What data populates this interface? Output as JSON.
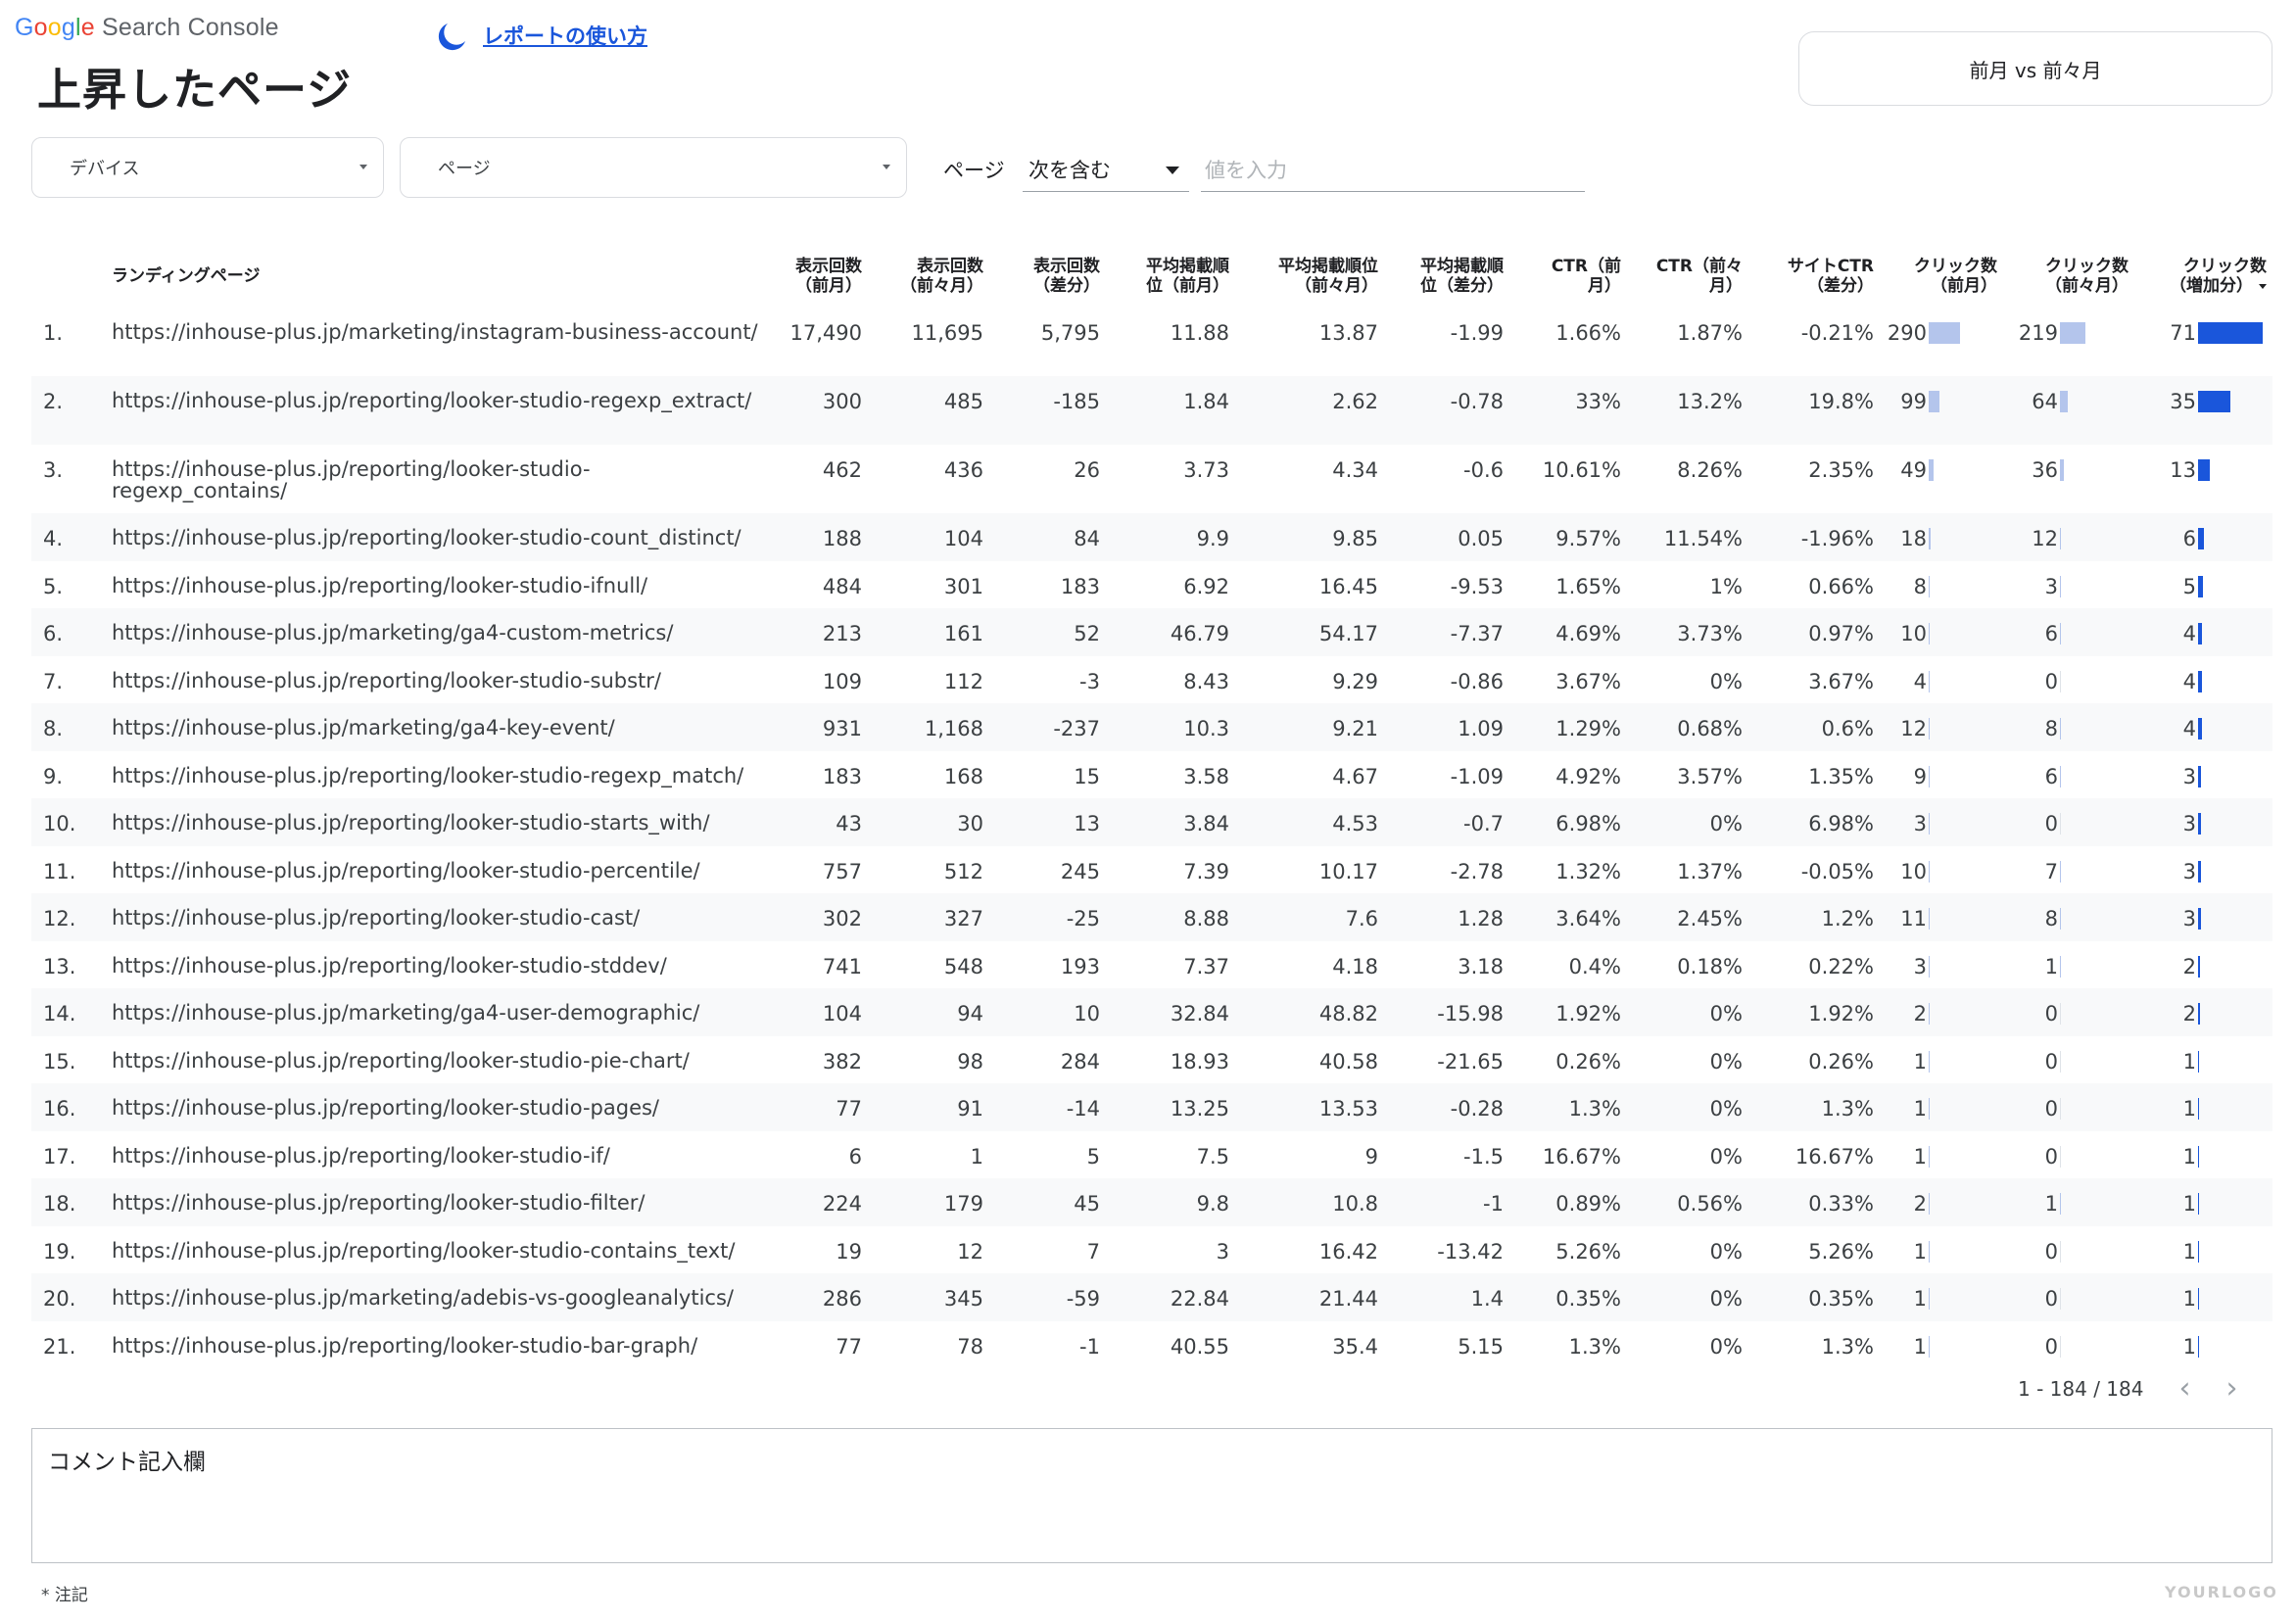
{
  "app": {
    "brand": "Search Console",
    "google": [
      "G",
      "o",
      "o",
      "g",
      "l",
      "e"
    ]
  },
  "page_title": "上昇したページ",
  "help_link": "レポートの使い方",
  "compare_button": "前月 vs 前々月",
  "filters": {
    "device": "デバイス",
    "page": "ページ",
    "condition_label": "ページ",
    "condition_value": "次を含む",
    "value_placeholder": "値を入力"
  },
  "table": {
    "headers": {
      "url": "ランディングページ",
      "imp_prev": [
        "表示回数",
        "（前月）"
      ],
      "imp_prev2": [
        "表示回数",
        "（前々月）"
      ],
      "imp_diff": [
        "表示回数",
        "（差分）"
      ],
      "pos_prev": [
        "平均掲載順",
        "位（前月）"
      ],
      "pos_prev2": [
        "平均掲載順位",
        "（前々月）"
      ],
      "pos_diff": [
        "平均掲載順",
        "位（差分）"
      ],
      "ctr_prev": [
        "CTR（前",
        "月）"
      ],
      "ctr_prev2": [
        "CTR（前々",
        "月）"
      ],
      "ctr_diff": [
        "サイトCTR",
        "（差分）"
      ],
      "clk_prev": [
        "クリック数",
        "（前月）"
      ],
      "clk_prev2": [
        "クリック数",
        "（前々月）"
      ],
      "clk_inc": [
        "クリック数",
        "（増加分）"
      ]
    },
    "rows": [
      {
        "idx": "1.",
        "url": "https://inhouse-plus.jp/marketing/instagram-business-account/",
        "imp_prev": "17,490",
        "imp_prev2": "11,695",
        "imp_diff": "5,795",
        "pos_prev": "11.88",
        "pos_prev2": "13.87",
        "pos_diff": "-1.99",
        "ctr_prev": "1.66%",
        "ctr_prev2": "1.87%",
        "ctr_diff": "-0.21%",
        "clk_prev": 290,
        "clk_prev2": 219,
        "clk_inc": 71
      },
      {
        "idx": "2.",
        "url": "https://inhouse-plus.jp/reporting/looker-studio-regexp_extract/",
        "imp_prev": "300",
        "imp_prev2": "485",
        "imp_diff": "-185",
        "pos_prev": "1.84",
        "pos_prev2": "2.62",
        "pos_diff": "-0.78",
        "ctr_prev": "33%",
        "ctr_prev2": "13.2%",
        "ctr_diff": "19.8%",
        "clk_prev": 99,
        "clk_prev2": 64,
        "clk_inc": 35
      },
      {
        "idx": "3.",
        "url": "https://inhouse-plus.jp/reporting/looker-studio-regexp_contains/",
        "imp_prev": "462",
        "imp_prev2": "436",
        "imp_diff": "26",
        "pos_prev": "3.73",
        "pos_prev2": "4.34",
        "pos_diff": "-0.6",
        "ctr_prev": "10.61%",
        "ctr_prev2": "8.26%",
        "ctr_diff": "2.35%",
        "clk_prev": 49,
        "clk_prev2": 36,
        "clk_inc": 13
      },
      {
        "idx": "4.",
        "url": "https://inhouse-plus.jp/reporting/looker-studio-count_distinct/",
        "imp_prev": "188",
        "imp_prev2": "104",
        "imp_diff": "84",
        "pos_prev": "9.9",
        "pos_prev2": "9.85",
        "pos_diff": "0.05",
        "ctr_prev": "9.57%",
        "ctr_prev2": "11.54%",
        "ctr_diff": "-1.96%",
        "clk_prev": 18,
        "clk_prev2": 12,
        "clk_inc": 6
      },
      {
        "idx": "5.",
        "url": "https://inhouse-plus.jp/reporting/looker-studio-ifnull/",
        "imp_prev": "484",
        "imp_prev2": "301",
        "imp_diff": "183",
        "pos_prev": "6.92",
        "pos_prev2": "16.45",
        "pos_diff": "-9.53",
        "ctr_prev": "1.65%",
        "ctr_prev2": "1%",
        "ctr_diff": "0.66%",
        "clk_prev": 8,
        "clk_prev2": 3,
        "clk_inc": 5
      },
      {
        "idx": "6.",
        "url": "https://inhouse-plus.jp/marketing/ga4-custom-metrics/",
        "imp_prev": "213",
        "imp_prev2": "161",
        "imp_diff": "52",
        "pos_prev": "46.79",
        "pos_prev2": "54.17",
        "pos_diff": "-7.37",
        "ctr_prev": "4.69%",
        "ctr_prev2": "3.73%",
        "ctr_diff": "0.97%",
        "clk_prev": 10,
        "clk_prev2": 6,
        "clk_inc": 4
      },
      {
        "idx": "7.",
        "url": "https://inhouse-plus.jp/reporting/looker-studio-substr/",
        "imp_prev": "109",
        "imp_prev2": "112",
        "imp_diff": "-3",
        "pos_prev": "8.43",
        "pos_prev2": "9.29",
        "pos_diff": "-0.86",
        "ctr_prev": "3.67%",
        "ctr_prev2": "0%",
        "ctr_diff": "3.67%",
        "clk_prev": 4,
        "clk_prev2": 0,
        "clk_inc": 4
      },
      {
        "idx": "8.",
        "url": "https://inhouse-plus.jp/marketing/ga4-key-event/",
        "imp_prev": "931",
        "imp_prev2": "1,168",
        "imp_diff": "-237",
        "pos_prev": "10.3",
        "pos_prev2": "9.21",
        "pos_diff": "1.09",
        "ctr_prev": "1.29%",
        "ctr_prev2": "0.68%",
        "ctr_diff": "0.6%",
        "clk_prev": 12,
        "clk_prev2": 8,
        "clk_inc": 4
      },
      {
        "idx": "9.",
        "url": "https://inhouse-plus.jp/reporting/looker-studio-regexp_match/",
        "imp_prev": "183",
        "imp_prev2": "168",
        "imp_diff": "15",
        "pos_prev": "3.58",
        "pos_prev2": "4.67",
        "pos_diff": "-1.09",
        "ctr_prev": "4.92%",
        "ctr_prev2": "3.57%",
        "ctr_diff": "1.35%",
        "clk_prev": 9,
        "clk_prev2": 6,
        "clk_inc": 3
      },
      {
        "idx": "10.",
        "url": "https://inhouse-plus.jp/reporting/looker-studio-starts_with/",
        "imp_prev": "43",
        "imp_prev2": "30",
        "imp_diff": "13",
        "pos_prev": "3.84",
        "pos_prev2": "4.53",
        "pos_diff": "-0.7",
        "ctr_prev": "6.98%",
        "ctr_prev2": "0%",
        "ctr_diff": "6.98%",
        "clk_prev": 3,
        "clk_prev2": 0,
        "clk_inc": 3
      },
      {
        "idx": "11.",
        "url": "https://inhouse-plus.jp/reporting/looker-studio-percentile/",
        "imp_prev": "757",
        "imp_prev2": "512",
        "imp_diff": "245",
        "pos_prev": "7.39",
        "pos_prev2": "10.17",
        "pos_diff": "-2.78",
        "ctr_prev": "1.32%",
        "ctr_prev2": "1.37%",
        "ctr_diff": "-0.05%",
        "clk_prev": 10,
        "clk_prev2": 7,
        "clk_inc": 3
      },
      {
        "idx": "12.",
        "url": "https://inhouse-plus.jp/reporting/looker-studio-cast/",
        "imp_prev": "302",
        "imp_prev2": "327",
        "imp_diff": "-25",
        "pos_prev": "8.88",
        "pos_prev2": "7.6",
        "pos_diff": "1.28",
        "ctr_prev": "3.64%",
        "ctr_prev2": "2.45%",
        "ctr_diff": "1.2%",
        "clk_prev": 11,
        "clk_prev2": 8,
        "clk_inc": 3
      },
      {
        "idx": "13.",
        "url": "https://inhouse-plus.jp/reporting/looker-studio-stddev/",
        "imp_prev": "741",
        "imp_prev2": "548",
        "imp_diff": "193",
        "pos_prev": "7.37",
        "pos_prev2": "4.18",
        "pos_diff": "3.18",
        "ctr_prev": "0.4%",
        "ctr_prev2": "0.18%",
        "ctr_diff": "0.22%",
        "clk_prev": 3,
        "clk_prev2": 1,
        "clk_inc": 2
      },
      {
        "idx": "14.",
        "url": "https://inhouse-plus.jp/marketing/ga4-user-demographic/",
        "imp_prev": "104",
        "imp_prev2": "94",
        "imp_diff": "10",
        "pos_prev": "32.84",
        "pos_prev2": "48.82",
        "pos_diff": "-15.98",
        "ctr_prev": "1.92%",
        "ctr_prev2": "0%",
        "ctr_diff": "1.92%",
        "clk_prev": 2,
        "clk_prev2": 0,
        "clk_inc": 2
      },
      {
        "idx": "15.",
        "url": "https://inhouse-plus.jp/reporting/looker-studio-pie-chart/",
        "imp_prev": "382",
        "imp_prev2": "98",
        "imp_diff": "284",
        "pos_prev": "18.93",
        "pos_prev2": "40.58",
        "pos_diff": "-21.65",
        "ctr_prev": "0.26%",
        "ctr_prev2": "0%",
        "ctr_diff": "0.26%",
        "clk_prev": 1,
        "clk_prev2": 0,
        "clk_inc": 1
      },
      {
        "idx": "16.",
        "url": "https://inhouse-plus.jp/reporting/looker-studio-pages/",
        "imp_prev": "77",
        "imp_prev2": "91",
        "imp_diff": "-14",
        "pos_prev": "13.25",
        "pos_prev2": "13.53",
        "pos_diff": "-0.28",
        "ctr_prev": "1.3%",
        "ctr_prev2": "0%",
        "ctr_diff": "1.3%",
        "clk_prev": 1,
        "clk_prev2": 0,
        "clk_inc": 1
      },
      {
        "idx": "17.",
        "url": "https://inhouse-plus.jp/reporting/looker-studio-if/",
        "imp_prev": "6",
        "imp_prev2": "1",
        "imp_diff": "5",
        "pos_prev": "7.5",
        "pos_prev2": "9",
        "pos_diff": "-1.5",
        "ctr_prev": "16.67%",
        "ctr_prev2": "0%",
        "ctr_diff": "16.67%",
        "clk_prev": 1,
        "clk_prev2": 0,
        "clk_inc": 1
      },
      {
        "idx": "18.",
        "url": "https://inhouse-plus.jp/reporting/looker-studio-filter/",
        "imp_prev": "224",
        "imp_prev2": "179",
        "imp_diff": "45",
        "pos_prev": "9.8",
        "pos_prev2": "10.8",
        "pos_diff": "-1",
        "ctr_prev": "0.89%",
        "ctr_prev2": "0.56%",
        "ctr_diff": "0.33%",
        "clk_prev": 2,
        "clk_prev2": 1,
        "clk_inc": 1
      },
      {
        "idx": "19.",
        "url": "https://inhouse-plus.jp/reporting/looker-studio-contains_text/",
        "imp_prev": "19",
        "imp_prev2": "12",
        "imp_diff": "7",
        "pos_prev": "3",
        "pos_prev2": "16.42",
        "pos_diff": "-13.42",
        "ctr_prev": "5.26%",
        "ctr_prev2": "0%",
        "ctr_diff": "5.26%",
        "clk_prev": 1,
        "clk_prev2": 0,
        "clk_inc": 1
      },
      {
        "idx": "20.",
        "url": "https://inhouse-plus.jp/marketing/adebis-vs-googleanalytics/",
        "imp_prev": "286",
        "imp_prev2": "345",
        "imp_diff": "-59",
        "pos_prev": "22.84",
        "pos_prev2": "21.44",
        "pos_diff": "1.4",
        "ctr_prev": "0.35%",
        "ctr_prev2": "0%",
        "ctr_diff": "0.35%",
        "clk_prev": 1,
        "clk_prev2": 0,
        "clk_inc": 1
      },
      {
        "idx": "21.",
        "url": "https://inhouse-plus.jp/reporting/looker-studio-bar-graph/",
        "imp_prev": "77",
        "imp_prev2": "78",
        "imp_diff": "-1",
        "pos_prev": "40.55",
        "pos_prev2": "35.4",
        "pos_diff": "5.15",
        "ctr_prev": "1.3%",
        "ctr_prev2": "0%",
        "ctr_diff": "1.3%",
        "clk_prev": 1,
        "clk_prev2": 0,
        "clk_inc": 1
      }
    ]
  },
  "pagination": {
    "range": "1 - 184 / 184",
    "prev_icon": "chevron-left-icon",
    "next_icon": "chevron-right-icon"
  },
  "comment_label": "コメント記入欄",
  "note": "* 注記",
  "watermark": "YOURLOGO",
  "colors": {
    "accent": "#1a56db",
    "bar_light": "#b4c5ec"
  }
}
